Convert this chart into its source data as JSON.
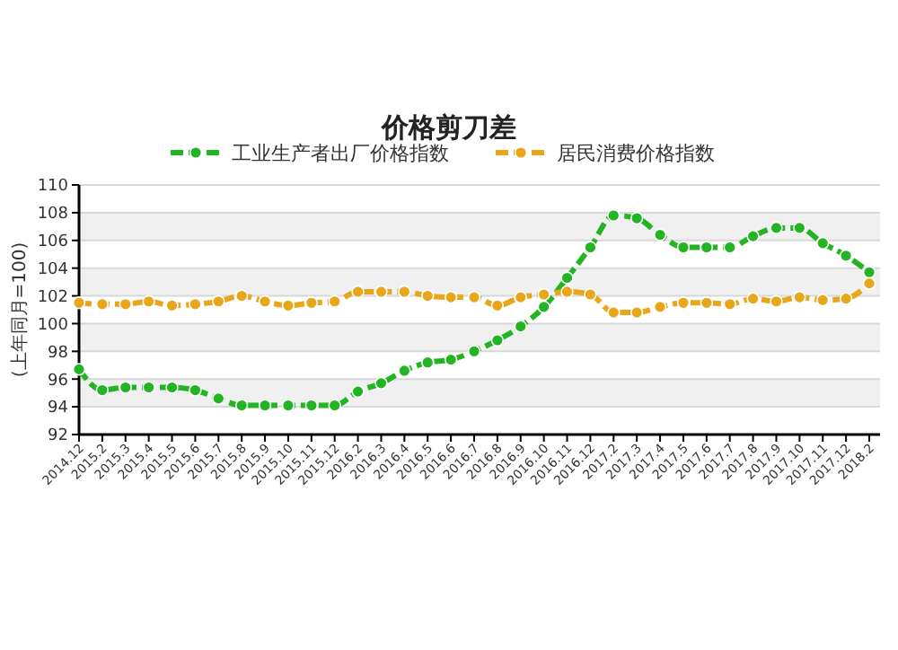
{
  "chart_data": {
    "type": "line",
    "title": "价格剪刀差",
    "ylabel": "(上年同月=100)",
    "categories": [
      "2014.12",
      "2015.2",
      "2015.3",
      "2015.4",
      "2015.5",
      "2015.6",
      "2015.7",
      "2015.8",
      "2015.9",
      "2015.10",
      "2015.11",
      "2015.12",
      "2016.2",
      "2016.3",
      "2016.4",
      "2016.5",
      "2016.6",
      "2016.7",
      "2016.8",
      "2016.9",
      "2016.10",
      "2016.11",
      "2016.12",
      "2017.2",
      "2017.3",
      "2017.4",
      "2017.5",
      "2017.6",
      "2017.7",
      "2017.8",
      "2017.9",
      "2017.10",
      "2017.11",
      "2017.12",
      "2018.2"
    ],
    "series": [
      {
        "name": "工业生产者出厂价格指数",
        "color": "#22b422",
        "values": [
          96.7,
          95.2,
          95.4,
          95.4,
          95.4,
          95.2,
          94.6,
          94.1,
          94.1,
          94.1,
          94.1,
          94.1,
          95.1,
          95.7,
          96.6,
          97.2,
          97.4,
          98.0,
          98.8,
          99.8,
          101.2,
          103.3,
          105.5,
          107.8,
          107.6,
          106.4,
          105.5,
          105.5,
          105.5,
          106.3,
          106.9,
          106.9,
          105.8,
          104.9,
          103.7
        ]
      },
      {
        "name": "居民消费价格指数",
        "color": "#e8a61a",
        "values": [
          101.5,
          101.4,
          101.4,
          101.6,
          101.3,
          101.4,
          101.6,
          102.0,
          101.6,
          101.3,
          101.5,
          101.6,
          102.3,
          102.3,
          102.3,
          102.0,
          101.9,
          101.9,
          101.3,
          101.9,
          102.1,
          102.3,
          102.1,
          100.8,
          100.8,
          101.2,
          101.5,
          101.5,
          101.4,
          101.8,
          101.6,
          101.9,
          101.7,
          101.8,
          102.9
        ]
      }
    ],
    "ylim": [
      92,
      110
    ],
    "yticks": [
      92,
      94,
      96,
      98,
      100,
      102,
      104,
      106,
      108,
      110
    ],
    "grid": "y",
    "legend": "top",
    "marker": "circle",
    "line_style": "dashed"
  }
}
